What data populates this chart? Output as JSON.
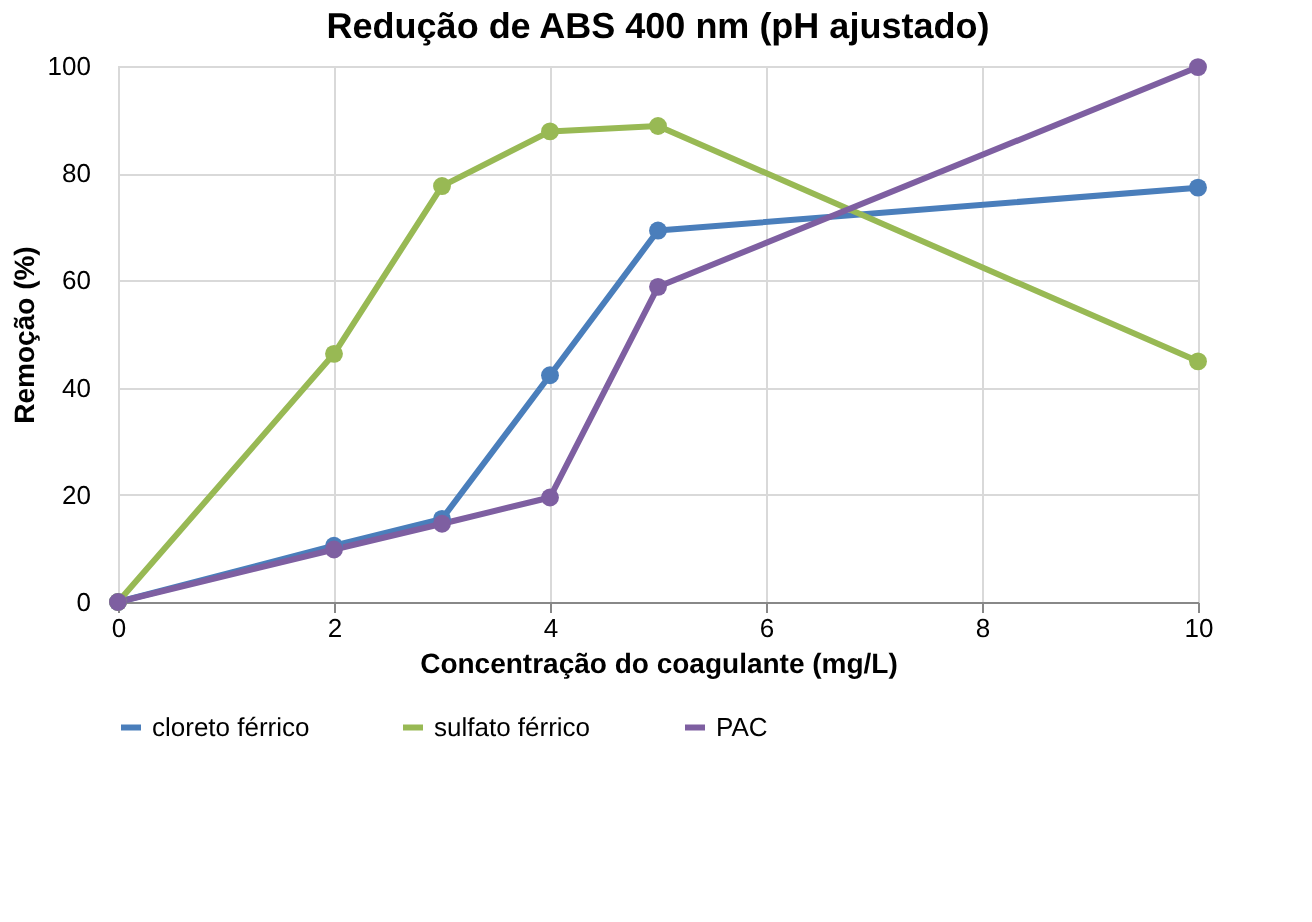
{
  "chart_data": {
    "type": "line",
    "title": "Redução de ABS 400 nm (pH ajustado)",
    "xlabel": "Concentração do coagulante (mg/L)",
    "ylabel": "Remoção (%)",
    "x": [
      0,
      2,
      3,
      4,
      5,
      10
    ],
    "series": [
      {
        "name": "cloreto férrico",
        "color": "#4a7ebb",
        "values": [
          0,
          10.5,
          15.5,
          42.3,
          69.3,
          77.3
        ]
      },
      {
        "name": "sulfato férrico",
        "color": "#98b954",
        "values": [
          0,
          46.3,
          77.6,
          87.8,
          88.8,
          44.9
        ]
      },
      {
        "name": "PAC",
        "color": "#7e5fa1",
        "values": [
          0,
          9.8,
          14.6,
          19.5,
          58.8,
          99.8
        ]
      }
    ],
    "xlim": [
      0,
      10
    ],
    "xticks": [
      0,
      2,
      4,
      6,
      8,
      10
    ],
    "ylim": [
      0,
      100
    ],
    "yticks": [
      0,
      20,
      40,
      60,
      80,
      100
    ],
    "grid": true,
    "legend": "bottom",
    "marker": "circle",
    "line_style": "solid"
  }
}
